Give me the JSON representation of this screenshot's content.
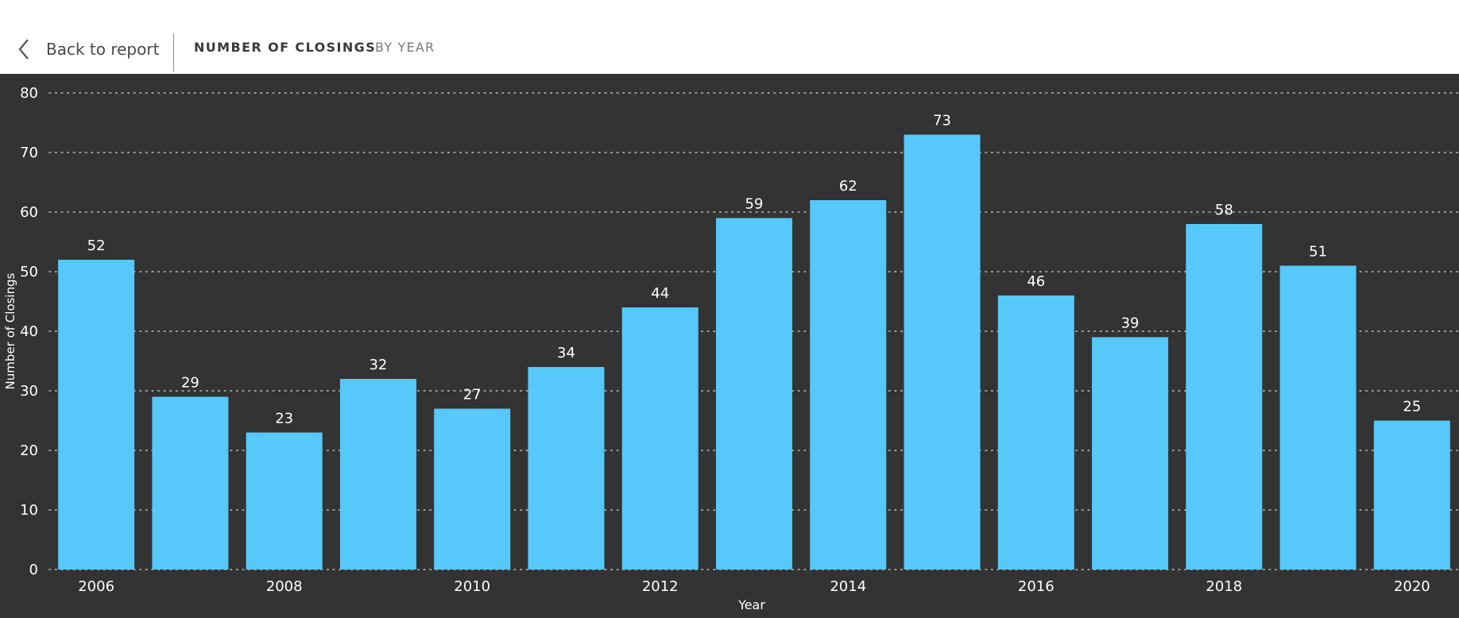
{
  "header": {
    "back_label": "Back to report",
    "title": "NUMBER OF CLOSINGS",
    "subtitle": "BY YEAR"
  },
  "colors": {
    "bar": "#56C8FA",
    "background": "#333333",
    "text": "#ffffff",
    "grid": "#bdbdbd"
  },
  "chart_data": {
    "type": "bar",
    "categories": [
      "2006",
      "2007",
      "2008",
      "2009",
      "2010",
      "2011",
      "2012",
      "2013",
      "2014",
      "2015",
      "2016",
      "2017",
      "2018",
      "2019",
      "2020"
    ],
    "values": [
      52,
      29,
      23,
      32,
      27,
      34,
      44,
      59,
      62,
      73,
      46,
      39,
      58,
      51,
      25
    ],
    "x_tick_labels": [
      "2006",
      "2008",
      "2010",
      "2012",
      "2014",
      "2016",
      "2018",
      "2020"
    ],
    "y_ticks": [
      0,
      10,
      20,
      30,
      40,
      50,
      60,
      70,
      80
    ],
    "xlabel": "Year",
    "ylabel": "Number of Closings",
    "ylim": [
      0,
      80
    ],
    "grid": true,
    "data_labels": true
  }
}
